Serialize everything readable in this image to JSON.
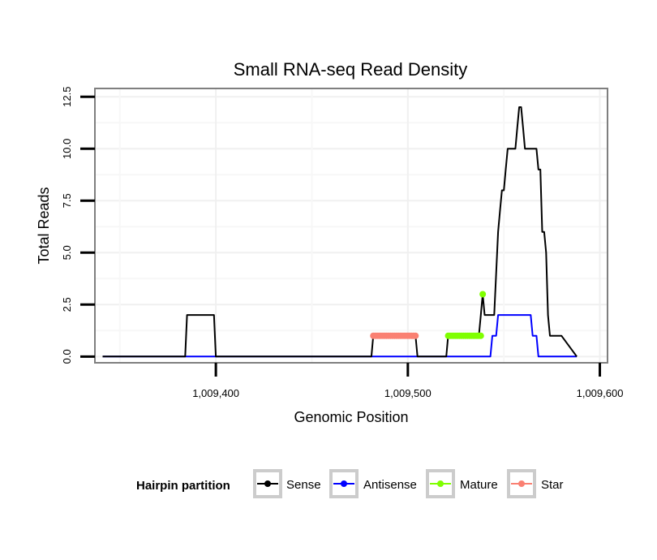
{
  "chart_data": {
    "type": "line",
    "title": "Small RNA-seq Read Density",
    "xlabel": "Genomic Position",
    "ylabel": "Total Reads",
    "xlim": [
      1009337,
      1009604
    ],
    "ylim": [
      -0.3,
      12.9
    ],
    "x_ticks": [
      1009400,
      1009500,
      1009600
    ],
    "x_tick_labels": [
      "1,009,400",
      "1,009,500",
      "1,009,600"
    ],
    "y_ticks": [
      0,
      2.5,
      5,
      7.5,
      10,
      12.5
    ],
    "y_tick_labels": [
      "0.0",
      "2.5",
      "5.0",
      "7.5",
      "10.0",
      "12.5"
    ],
    "grid": true,
    "legend": {
      "title": "Hairpin partition",
      "position": "bottom",
      "entries": [
        "Sense",
        "Antisense",
        "Mature",
        "Star"
      ]
    },
    "series": [
      {
        "name": "Sense",
        "color": "#000000",
        "style": "line",
        "x": [
          1009341,
          1009384,
          1009385,
          1009399,
          1009400,
          1009481,
          1009482,
          1009504,
          1009505,
          1009520,
          1009521,
          1009537,
          1009538,
          1009539,
          1009540,
          1009541,
          1009545,
          1009546,
          1009547,
          1009548,
          1009549,
          1009550,
          1009551,
          1009552,
          1009556,
          1009557,
          1009558,
          1009559,
          1009560,
          1009561,
          1009567,
          1009568,
          1009569,
          1009570,
          1009571,
          1009572,
          1009573,
          1009574,
          1009579,
          1009580,
          1009588
        ],
        "y": [
          0,
          0,
          2,
          2,
          0,
          0,
          1,
          1,
          0,
          0,
          1,
          1,
          2,
          3,
          2,
          2,
          2,
          4,
          6,
          7,
          8,
          8,
          9,
          10,
          10,
          11,
          12,
          12,
          11,
          10,
          10,
          9,
          9,
          6,
          6,
          5,
          2,
          1,
          1,
          1,
          0
        ]
      },
      {
        "name": "Antisense",
        "color": "#0000ff",
        "style": "line",
        "x": [
          1009341,
          1009543,
          1009544,
          1009546,
          1009547,
          1009564,
          1009565,
          1009567,
          1009568,
          1009588
        ],
        "y": [
          0,
          0,
          1,
          1,
          2,
          2,
          1,
          1,
          0,
          0
        ]
      },
      {
        "name": "Mature",
        "color": "#7fff00",
        "style": "points",
        "x": [
          1009521,
          1009522,
          1009523,
          1009524,
          1009525,
          1009526,
          1009527,
          1009528,
          1009529,
          1009530,
          1009531,
          1009532,
          1009533,
          1009534,
          1009535,
          1009536,
          1009537,
          1009538,
          1009539
        ],
        "y": [
          1,
          1,
          1,
          1,
          1,
          1,
          1,
          1,
          1,
          1,
          1,
          1,
          1,
          1,
          1,
          1,
          1,
          1,
          3
        ]
      },
      {
        "name": "Star",
        "color": "#fa8072",
        "style": "points",
        "x": [
          1009482,
          1009483,
          1009484,
          1009485,
          1009486,
          1009487,
          1009488,
          1009489,
          1009490,
          1009491,
          1009492,
          1009493,
          1009494,
          1009495,
          1009496,
          1009497,
          1009498,
          1009499,
          1009500,
          1009501,
          1009502,
          1009503,
          1009504
        ],
        "y": [
          1,
          1,
          1,
          1,
          1,
          1,
          1,
          1,
          1,
          1,
          1,
          1,
          1,
          1,
          1,
          1,
          1,
          1,
          1,
          1,
          1,
          1,
          1
        ]
      }
    ]
  }
}
